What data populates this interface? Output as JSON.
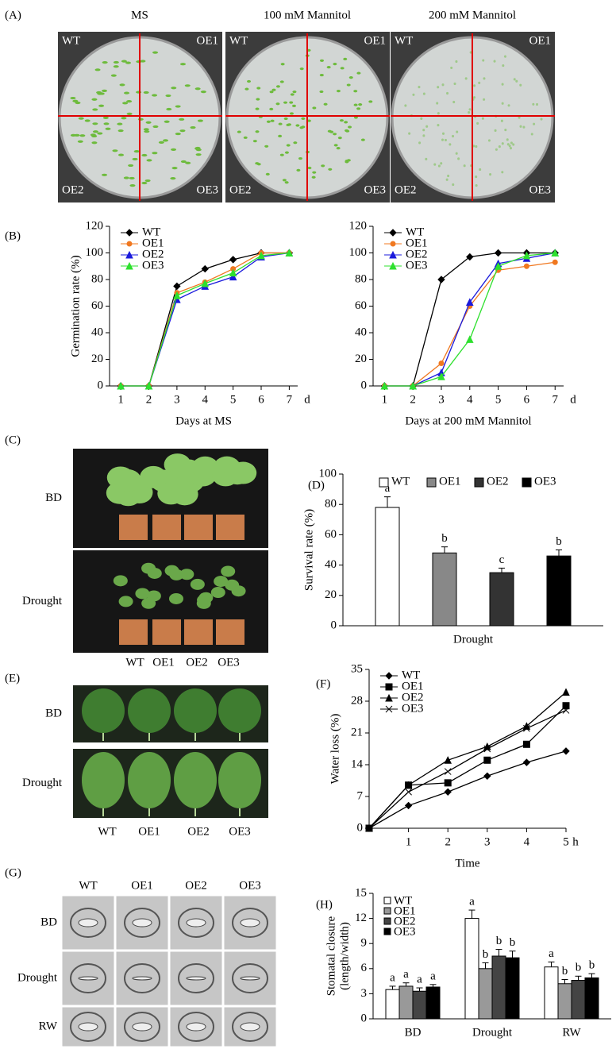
{
  "panel_labels": [
    "(A)",
    "(B)",
    "(C)",
    "(D)",
    "(E)",
    "(F)",
    "(G)",
    "(H)"
  ],
  "plates": {
    "conditions": [
      "MS",
      "100 mM Mannitol",
      "200 mM Mannitol"
    ],
    "quadrants": [
      "WT",
      "OE1",
      "OE2",
      "OE3"
    ]
  },
  "plants": {
    "rows": [
      "BD",
      "Drought"
    ],
    "lines": [
      "WT",
      "OE1",
      "OE2",
      "OE3"
    ]
  },
  "leaves": {
    "rows": [
      "BD",
      "Drought"
    ],
    "lines": [
      "WT",
      "OE1",
      "OE2",
      "OE3"
    ]
  },
  "stomata": {
    "rows": [
      "BD",
      "Drought",
      "RW"
    ],
    "lines": [
      "WT",
      "OE1",
      "OE2",
      "OE3"
    ]
  },
  "chart_data": [
    {
      "type": "line",
      "xlabel": "Days at MS",
      "ylabel": "Germination rate (%)",
      "x_unit": "d",
      "x": [
        1,
        2,
        3,
        4,
        5,
        6,
        7
      ],
      "xlim": [
        0.6,
        7.3
      ],
      "xticks": [
        1,
        2,
        3,
        4,
        5,
        6,
        7
      ],
      "ylim": [
        0,
        120
      ],
      "yticks": [
        0,
        20,
        40,
        60,
        80,
        100,
        120
      ],
      "legend": "upper left",
      "series": [
        {
          "name": "WT",
          "color": "#000000",
          "marker": "diamond",
          "values": [
            0,
            0,
            75,
            88,
            95,
            100,
            100
          ]
        },
        {
          "name": "OE1",
          "color": "#f07820",
          "marker": "circle",
          "values": [
            0,
            0,
            70,
            78,
            88,
            100,
            100
          ]
        },
        {
          "name": "OE2",
          "color": "#1a1adc",
          "marker": "triangle",
          "values": [
            0,
            0,
            65,
            75,
            82,
            97,
            100
          ]
        },
        {
          "name": "OE3",
          "color": "#2ee02e",
          "marker": "triangle",
          "values": [
            0,
            0,
            68,
            77,
            85,
            98,
            100
          ]
        }
      ]
    },
    {
      "type": "line",
      "xlabel": "Days at 200 mM Mannitol",
      "x_unit": "d",
      "x": [
        1,
        2,
        3,
        4,
        5,
        6,
        7
      ],
      "xlim": [
        0.6,
        7.3
      ],
      "xticks": [
        1,
        2,
        3,
        4,
        5,
        6,
        7
      ],
      "ylim": [
        0,
        120
      ],
      "yticks": [
        0,
        20,
        40,
        60,
        80,
        100,
        120
      ],
      "legend": "upper left",
      "series": [
        {
          "name": "WT",
          "color": "#000000",
          "marker": "diamond",
          "values": [
            0,
            0,
            80,
            97,
            100,
            100,
            100
          ]
        },
        {
          "name": "OE1",
          "color": "#f07820",
          "marker": "circle",
          "values": [
            0,
            0,
            17,
            60,
            87,
            90,
            93
          ]
        },
        {
          "name": "OE2",
          "color": "#1a1adc",
          "marker": "triangle",
          "values": [
            0,
            0,
            10,
            63,
            92,
            96,
            100
          ]
        },
        {
          "name": "OE3",
          "color": "#2ee02e",
          "marker": "triangle",
          "values": [
            0,
            0,
            7,
            35,
            90,
            98,
            100
          ]
        }
      ]
    },
    {
      "type": "bar",
      "ylabel": "Survival rate (%)",
      "categories": [
        "Drought"
      ],
      "ylim": [
        0,
        100
      ],
      "yticks": [
        0,
        20,
        40,
        60,
        80,
        100
      ],
      "legend": "top",
      "series": [
        {
          "name": "WT",
          "color": "#ffffff",
          "values": [
            78
          ],
          "errors": [
            7
          ],
          "letters": [
            "a"
          ]
        },
        {
          "name": "OE1",
          "color": "#888888",
          "values": [
            48
          ],
          "errors": [
            4
          ],
          "letters": [
            "b"
          ]
        },
        {
          "name": "OE2",
          "color": "#333333",
          "values": [
            35
          ],
          "errors": [
            3
          ],
          "letters": [
            "c"
          ]
        },
        {
          "name": "OE3",
          "color": "#000000",
          "values": [
            46
          ],
          "errors": [
            4
          ],
          "letters": [
            "b"
          ]
        }
      ]
    },
    {
      "type": "line",
      "xlabel": "Time",
      "ylabel": "Water loss (%)",
      "x_unit": "h",
      "x": [
        0,
        1,
        2,
        3,
        4,
        5
      ],
      "xlim": [
        0,
        5
      ],
      "xticks": [
        1,
        2,
        3,
        4,
        5
      ],
      "ylim": [
        0,
        35
      ],
      "yticks": [
        0,
        7,
        14,
        21,
        28,
        35
      ],
      "legend": "upper left",
      "series": [
        {
          "name": "WT",
          "color": "#000000",
          "marker": "diamond",
          "values": [
            0,
            5,
            8,
            11.5,
            14.5,
            17
          ]
        },
        {
          "name": "OE1",
          "color": "#000000",
          "marker": "square",
          "values": [
            0,
            9.5,
            10,
            15,
            18.5,
            27
          ]
        },
        {
          "name": "OE2",
          "color": "#000000",
          "marker": "triangle",
          "values": [
            0,
            9.5,
            15,
            18,
            22.5,
            30
          ]
        },
        {
          "name": "OE3",
          "color": "#000000",
          "marker": "x",
          "values": [
            0,
            8,
            12.5,
            17.5,
            22,
            26
          ]
        }
      ]
    },
    {
      "type": "bar",
      "ylabel": [
        "Stomatal closure",
        "(length/width)"
      ],
      "categories": [
        "BD",
        "Drought",
        "RW"
      ],
      "ylim": [
        0,
        15
      ],
      "yticks": [
        0,
        3,
        6,
        9,
        12,
        15
      ],
      "legend": "upper left",
      "series": [
        {
          "name": "WT",
          "color": "#ffffff",
          "values": [
            3.5,
            12,
            6.2
          ],
          "errors": [
            0.4,
            1,
            0.6
          ],
          "letters": [
            "a",
            "a",
            "a"
          ]
        },
        {
          "name": "OE1",
          "color": "#999999",
          "values": [
            3.9,
            6,
            4.2
          ],
          "errors": [
            0.4,
            0.7,
            0.5
          ],
          "letters": [
            "a",
            "b",
            "b"
          ]
        },
        {
          "name": "OE2",
          "color": "#444444",
          "values": [
            3.3,
            7.5,
            4.6
          ],
          "errors": [
            0.4,
            0.8,
            0.5
          ],
          "letters": [
            "a",
            "b",
            "b"
          ]
        },
        {
          "name": "OE3",
          "color": "#000000",
          "values": [
            3.8,
            7.3,
            4.9
          ],
          "errors": [
            0.3,
            0.8,
            0.5
          ],
          "letters": [
            "a",
            "b",
            "b"
          ]
        }
      ]
    }
  ]
}
